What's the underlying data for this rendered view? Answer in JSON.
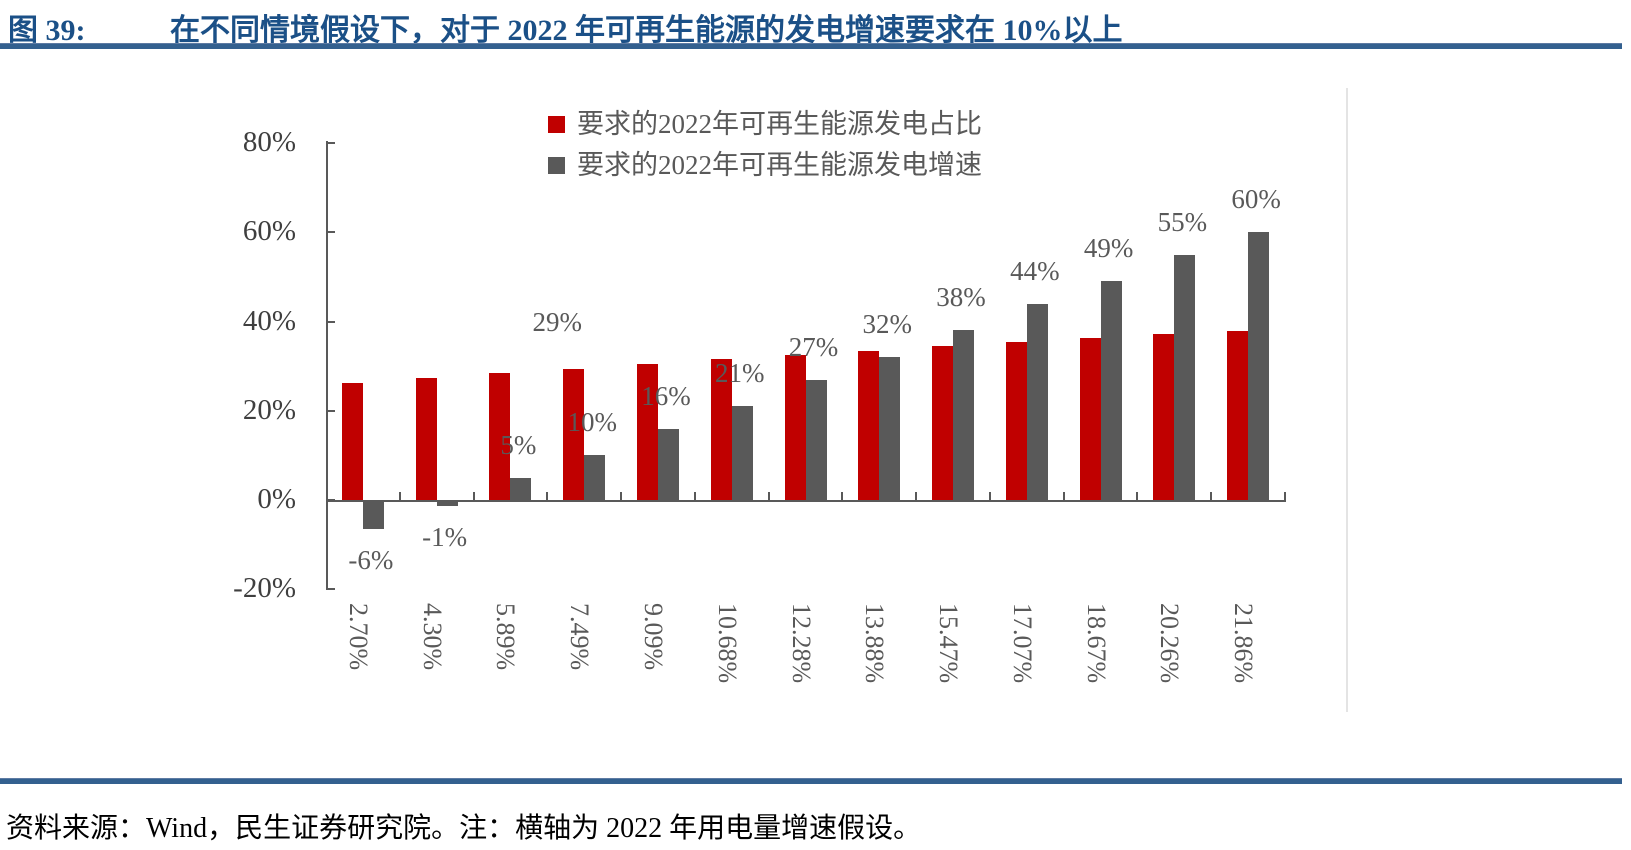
{
  "figure": {
    "label": "图 39:",
    "title": "在不同情境假设下，对于 2022 年可再生能源的发电增速要求在 10%以上"
  },
  "footer": {
    "text": "资料来源：Wind，民生证券研究院。注：横轴为 2022 年用电量增速假设。"
  },
  "colors": {
    "title_blue": "#1B5087",
    "rule_blue": "#33608F",
    "series_red": "#C00000",
    "series_gray": "#595959",
    "axis_gray": "#595959",
    "ytick_text": "#3F3F3F",
    "label_gray": "#595959",
    "frame_light": "#E4E4E4"
  },
  "chart_data": {
    "type": "bar",
    "categories": [
      "2.70%",
      "4.30%",
      "5.89%",
      "7.49%",
      "9.09%",
      "10.68%",
      "12.28%",
      "13.88%",
      "15.47%",
      "17.07%",
      "18.67%",
      "20.26%",
      "21.86%"
    ],
    "series": [
      {
        "name": "要求的2022年可再生能源发电占比",
        "color": "#C00000",
        "values": [
          26.2,
          27.3,
          28.4,
          29.4,
          30.4,
          31.5,
          32.5,
          33.5,
          34.4,
          35.4,
          36.3,
          37.2,
          37.8
        ]
      },
      {
        "name": "要求的2022年可再生能源发电增速",
        "color": "#595959",
        "values": [
          -6,
          -1,
          5,
          10,
          16,
          21,
          27,
          32,
          38,
          44,
          49,
          55,
          60
        ],
        "labels": [
          "-6%",
          "-1%",
          "5%",
          "10%",
          "16%",
          "21%",
          "27%",
          "32%",
          "38%",
          "44%",
          "49%",
          "55%",
          "60%"
        ]
      }
    ],
    "annotations": [
      {
        "text": "29%",
        "series_index": 0,
        "category_index": 3
      }
    ],
    "ylabel": "",
    "xlabel": "",
    "ylim": [
      -20,
      80
    ],
    "yticks": [
      {
        "label": "80%",
        "value": 80
      },
      {
        "label": "60%",
        "value": 60
      },
      {
        "label": "40%",
        "value": 40
      },
      {
        "label": "20%",
        "value": 20
      },
      {
        "label": "0%",
        "value": 0
      },
      {
        "label": "-20%",
        "value": -20
      }
    ],
    "grid": false,
    "legend_position": "top-center"
  }
}
